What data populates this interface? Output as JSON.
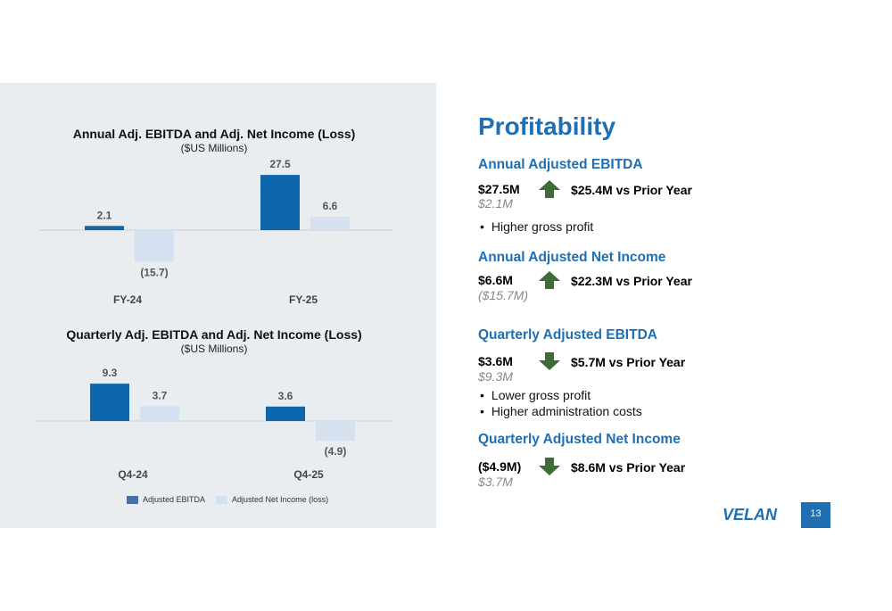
{
  "chart_data": [
    {
      "type": "bar",
      "title": "Annual Adj. EBITDA and Adj. Net Income (Loss)",
      "subtitle": "($US Millions)",
      "categories": [
        "FY-24",
        "FY-25"
      ],
      "series": [
        {
          "name": "Adjusted EBITDA",
          "values": [
            2.1,
            27.5
          ],
          "labels": [
            "2.1",
            "27.5"
          ],
          "color": "#0e66ad"
        },
        {
          "name": "Adjusted Net Income (loss)",
          "values": [
            -15.7,
            6.6
          ],
          "labels": [
            "(15.7)",
            "6.6"
          ],
          "color": "#d5e1f1"
        }
      ]
    },
    {
      "type": "bar",
      "title": "Quarterly Adj. EBITDA and Adj. Net Income (Loss)",
      "subtitle": "($US Millions)",
      "categories": [
        "Q4-24",
        "Q4-25"
      ],
      "series": [
        {
          "name": "Adjusted EBITDA",
          "values": [
            9.3,
            3.6
          ],
          "labels": [
            "9.3",
            "3.6"
          ],
          "color": "#0e66ad"
        },
        {
          "name": "Adjusted Net Income (loss)",
          "values": [
            3.7,
            -4.9
          ],
          "labels": [
            "3.7",
            "(4.9)"
          ],
          "color": "#d5e1f1"
        }
      ]
    }
  ],
  "legend": [
    {
      "label": "Adjusted EBITDA",
      "color": "#4a6fa5"
    },
    {
      "label": "Adjusted Net Income (loss)",
      "color": "#d5e1f1"
    }
  ],
  "heading": "Profitability",
  "sections": [
    {
      "title": "Annual Adjusted EBITDA",
      "value": "$27.5M",
      "direction": "up",
      "delta": "$25.4M vs Prior Year",
      "prior": "$2.1M",
      "bullets": [
        "Higher gross profit"
      ]
    },
    {
      "title": "Annual Adjusted Net Income",
      "value": "$6.6M",
      "direction": "up",
      "delta": "$22.3M vs Prior Year",
      "prior": "($15.7M)",
      "bullets": []
    },
    {
      "title": "Quarterly Adjusted EBITDA",
      "value": "$3.6M",
      "direction": "down",
      "delta": "$5.7M vs Prior Year",
      "prior": "$9.3M",
      "bullets": [
        "Lower gross profit",
        "Higher administration costs"
      ]
    },
    {
      "title": "Quarterly Adjusted Net Income",
      "value": "($4.9M)",
      "direction": "down",
      "delta": "$8.6M vs Prior Year",
      "prior": "$3.7M",
      "bullets": []
    }
  ],
  "arrow_color": "#3f6b36",
  "accent_color": "#1f6fb2",
  "logo_text": "VELAN",
  "page_number": "13"
}
